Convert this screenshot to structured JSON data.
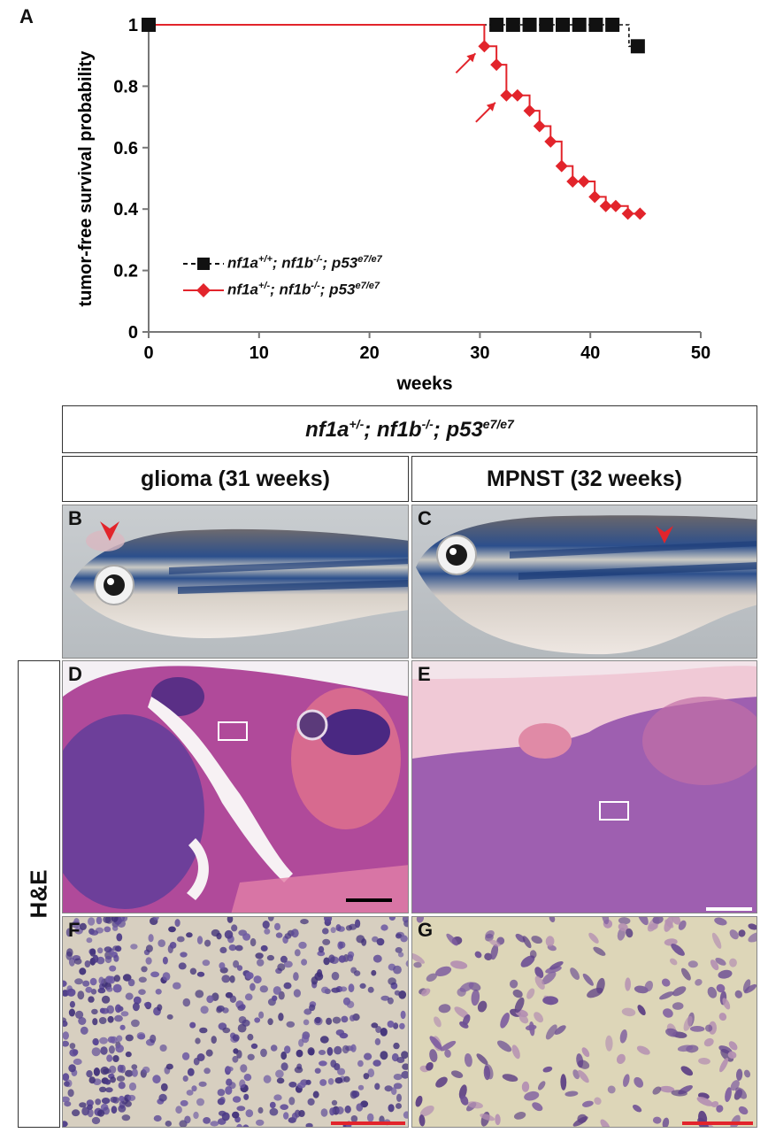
{
  "panel_labels": {
    "A": "A",
    "B": "B",
    "C": "C",
    "D": "D",
    "E": "E",
    "F": "F",
    "G": "G"
  },
  "genotype_header": {
    "prefix": "nf1a",
    "sup1": "+/-",
    "mid1": "; nf1b",
    "sup2": "-/-",
    "mid2": "; p53",
    "sup3": "e7/e7"
  },
  "column_headers": {
    "left": "glioma (31 weeks)",
    "right": "MPNST (32 weeks)"
  },
  "row_label": "H&E",
  "legend": [
    {
      "prefix": "nf1a",
      "sup1": "+/+",
      "mid1": "; nf1b",
      "sup2": "-/-",
      "mid2": "; p53",
      "sup3": "e7/e7",
      "color": "#111111",
      "style": "dashed",
      "marker": "square"
    },
    {
      "prefix": "nf1a",
      "sup1": "+/-",
      "mid1": "; nf1b",
      "sup2": "-/-",
      "mid2": "; p53",
      "sup3": "e7/e7",
      "color": "#e2242b",
      "style": "solid",
      "marker": "diamond"
    }
  ],
  "colors": {
    "control": "#111111",
    "mutant": "#e2242b",
    "arrow": "#e2242b",
    "scale_bar_black": "#000000",
    "scale_bar_white": "#ffffff",
    "scale_bar_red": "#e2242b"
  },
  "chart_data": {
    "type": "line",
    "xlabel": "weeks",
    "ylabel": "tumor-free survival probability",
    "xlim": [
      0,
      50
    ],
    "ylim": [
      0,
      1
    ],
    "xticks": [
      0,
      10,
      20,
      30,
      40,
      50
    ],
    "yticks": [
      0,
      0.2,
      0.4,
      0.6,
      0.8,
      1
    ],
    "ytick_labels": [
      "0",
      "0.2",
      "0.4",
      "0.6",
      "0.8",
      "1"
    ],
    "grid": false,
    "legend_position": "lower-left",
    "series": [
      {
        "name": "nf1a+/+; nf1b-/-; p53e7/e7",
        "style": "dashed-step",
        "x": [
          0,
          43.0,
          43.5,
          44.5
        ],
        "y": [
          1,
          1,
          0.93,
          0.93
        ],
        "markers": [
          [
            0,
            1
          ],
          [
            31.5,
            1
          ],
          [
            33,
            1
          ],
          [
            34.5,
            1
          ],
          [
            36,
            1
          ],
          [
            37.5,
            1
          ],
          [
            39,
            1
          ],
          [
            40.5,
            1
          ],
          [
            42,
            1
          ],
          [
            44.3,
            0.93
          ]
        ]
      },
      {
        "name": "nf1a+/-; nf1b-/-; p53e7/e7",
        "style": "solid-step",
        "x": [
          0,
          30.4,
          31.5,
          32.4,
          33.4,
          34.5,
          35.4,
          36.4,
          37.4,
          38.4,
          39.4,
          40.4,
          41.4,
          42.3,
          43.4,
          44.5
        ],
        "y": [
          1,
          0.93,
          0.87,
          0.77,
          0.77,
          0.72,
          0.67,
          0.62,
          0.54,
          0.49,
          0.49,
          0.44,
          0.41,
          0.41,
          0.385,
          0.385
        ],
        "markers": [
          [
            30.4,
            0.93
          ],
          [
            31.5,
            0.87
          ],
          [
            32.4,
            0.77
          ],
          [
            33.4,
            0.77
          ],
          [
            34.5,
            0.72
          ],
          [
            35.4,
            0.67
          ],
          [
            36.4,
            0.62
          ],
          [
            37.4,
            0.54
          ],
          [
            38.4,
            0.49
          ],
          [
            39.4,
            0.49
          ],
          [
            40.4,
            0.44
          ],
          [
            41.4,
            0.41
          ],
          [
            42.3,
            0.41
          ],
          [
            43.4,
            0.385
          ],
          [
            44.5,
            0.385
          ]
        ]
      }
    ],
    "annotations": [
      {
        "type": "arrow",
        "x": 30.4,
        "y": 0.93
      },
      {
        "type": "arrow",
        "x": 32.2,
        "y": 0.77
      }
    ]
  }
}
